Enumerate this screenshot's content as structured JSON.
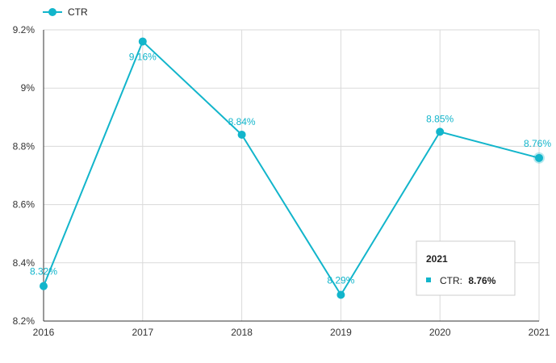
{
  "chart_data": {
    "type": "line",
    "x": [
      "2016",
      "2017",
      "2018",
      "2019",
      "2020",
      "2021"
    ],
    "series": [
      {
        "name": "CTR",
        "values": [
          8.32,
          9.16,
          8.84,
          8.29,
          8.85,
          8.76
        ],
        "labels": [
          "8.32%",
          "9.16%",
          "8.84%",
          "8.29%",
          "8.85%",
          "8.76%"
        ],
        "color": "#12b5cb"
      }
    ],
    "ylim": [
      8.2,
      9.2
    ],
    "yticks": [
      8.2,
      8.4,
      8.6,
      8.8,
      9.0,
      9.2
    ],
    "ytick_labels": [
      "8.2%",
      "8.4%",
      "8.6%",
      "8.8%",
      "9%",
      "9.2%"
    ],
    "grid": true,
    "legend": {
      "position": "top-left",
      "label": "CTR"
    },
    "tooltip": {
      "title": "2021",
      "series_label": "CTR:",
      "value_label": "8.76%",
      "highlight_index": 5
    }
  }
}
